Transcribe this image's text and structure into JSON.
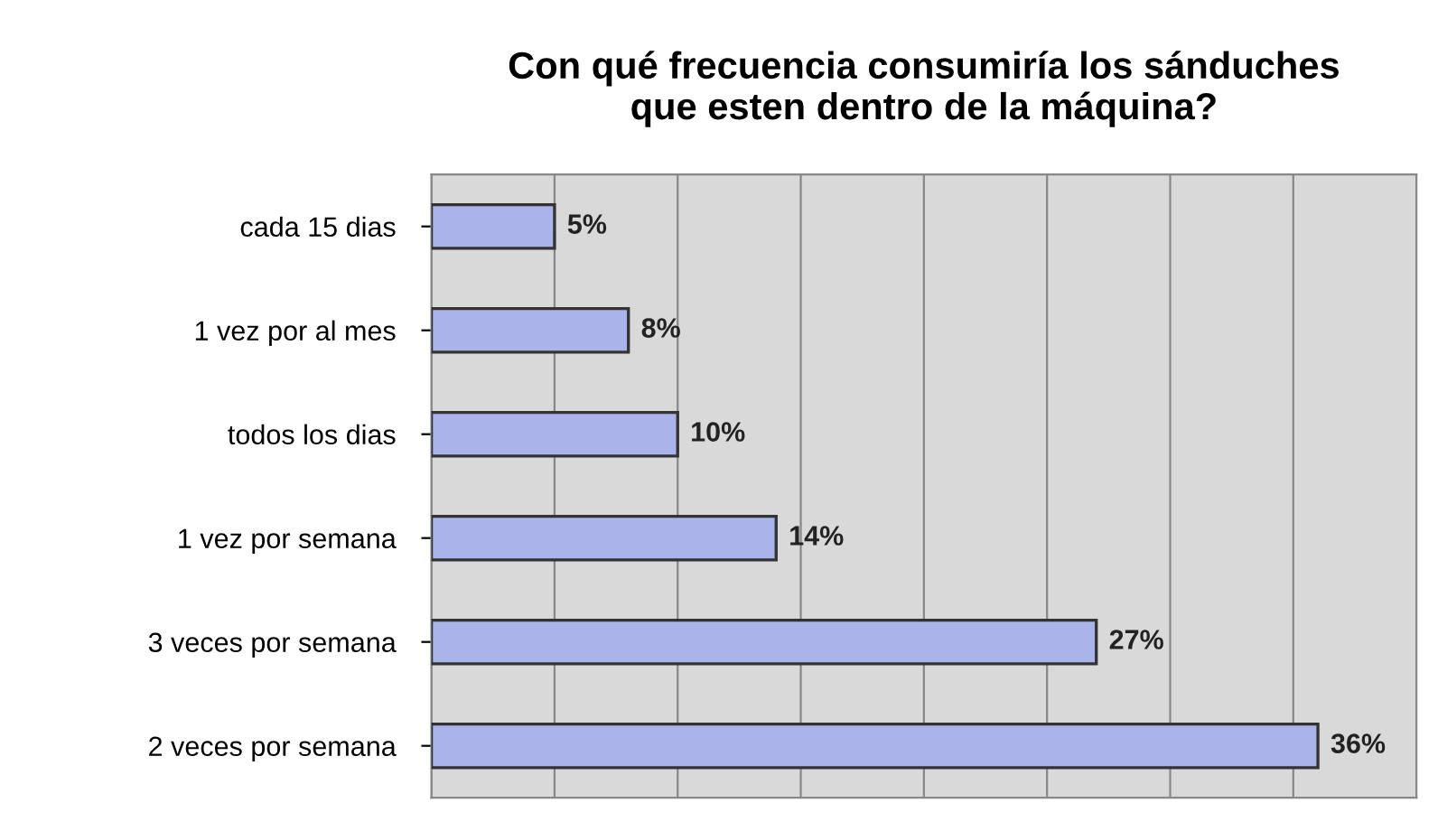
{
  "chart_data": {
    "type": "bar",
    "orientation": "horizontal",
    "title": "Con qué frecuencia consumiría los sánduches\nque esten dentro de la máquina?",
    "categories": [
      "cada 15 dias",
      "1 vez por al mes",
      "todos los dias",
      "1 vez por semana",
      "3 veces por semana",
      "2 veces por semana"
    ],
    "values": [
      5,
      8,
      10,
      14,
      27,
      36
    ],
    "value_labels": [
      "5%",
      "8%",
      "10%",
      "14%",
      "27%",
      "36%"
    ],
    "color": "#aab4ea",
    "xlim": [
      0,
      40
    ],
    "xticks": [
      {
        "value": 0,
        "label": null
      },
      {
        "value": 5,
        "label": null
      },
      {
        "value": 10,
        "label": null
      },
      {
        "value": 15,
        "label": null
      },
      {
        "value": 20,
        "label": null
      },
      {
        "value": 25,
        "label": null
      },
      {
        "value": 30,
        "label": null
      },
      {
        "value": 35,
        "label": null
      },
      {
        "value": 40,
        "label": null
      }
    ],
    "tick_labels": "y",
    "grid": "x",
    "legend": false
  }
}
